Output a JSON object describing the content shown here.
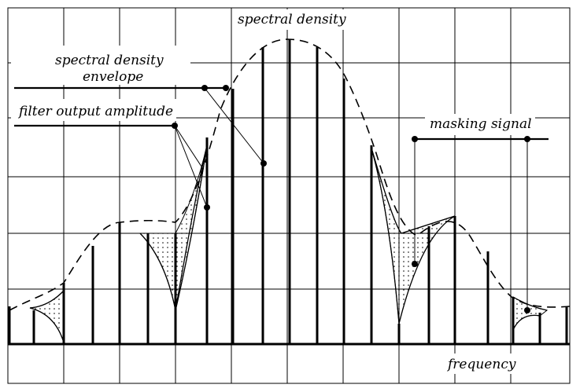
{
  "labels": {
    "spectral_density": "spectral density",
    "envelope_line1": "spectral density",
    "envelope_line2": "envelope",
    "filter_output": "filter output amplitude",
    "masking_signal": "masking signal",
    "frequency": "frequency"
  },
  "colors": {
    "ink": "#000000",
    "background": "#ffffff"
  }
}
